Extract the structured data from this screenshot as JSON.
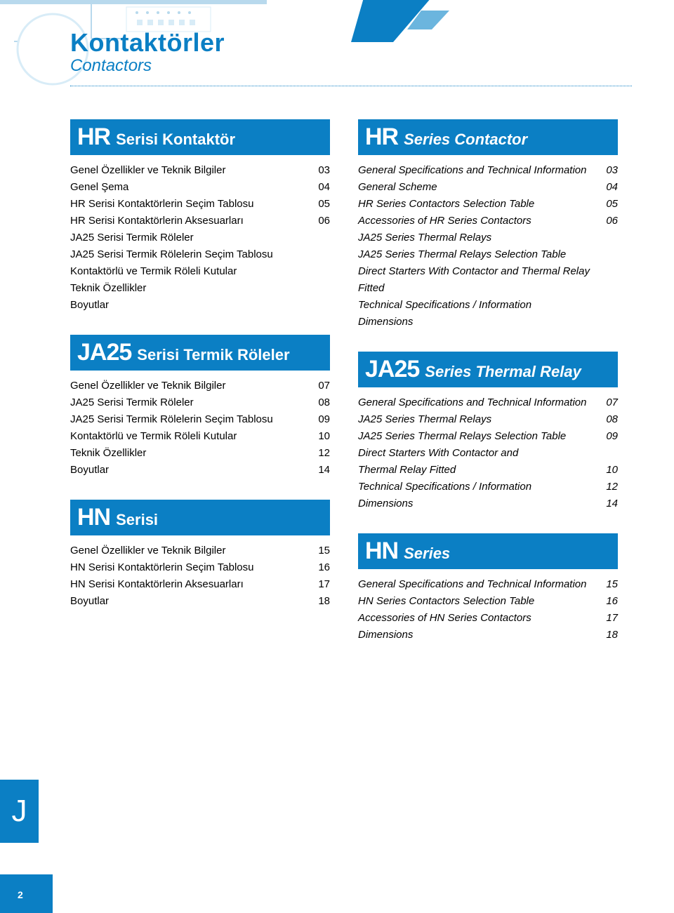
{
  "colors": {
    "blue": "#0b7fc4",
    "lightblue": "#8ec4e8",
    "darkblue": "#1a6fa8",
    "tabblue": "#0b7fc4"
  },
  "header": {
    "title": "Kontaktörler",
    "subtitle": "Contactors"
  },
  "sections": {
    "hr_left": {
      "prefix": "HR",
      "label": "Serisi Kontaktör",
      "items": [
        {
          "label": "Genel Özellikler ve Teknik Bilgiler",
          "page": "03"
        },
        {
          "label": "Genel Şema",
          "page": "04"
        },
        {
          "label": "HR Serisi Kontaktörlerin Seçim Tablosu",
          "page": "05"
        },
        {
          "label": "HR Serisi Kontaktörlerin Aksesuarları",
          "page": "06"
        },
        {
          "label": "JA25 Serisi Termik Röleler",
          "page": ""
        },
        {
          "label": "JA25 Serisi Termik Rölelerin Seçim Tablosu",
          "page": ""
        },
        {
          "label": "Kontaktörlü ve Termik Röleli Kutular",
          "page": ""
        },
        {
          "label": "Teknik Özellikler",
          "page": ""
        },
        {
          "label": "Boyutlar",
          "page": ""
        }
      ]
    },
    "hr_right": {
      "prefix": "HR",
      "label": "Series Contactor",
      "items": [
        {
          "label": "General Specifications and Technical Information",
          "page": "03"
        },
        {
          "label": "General Scheme",
          "page": "04"
        },
        {
          "label": "HR Series Contactors Selection Table",
          "page": "05"
        },
        {
          "label": "Accessories of HR Series Contactors",
          "page": "06"
        },
        {
          "label": "JA25 Series Thermal Relays",
          "page": ""
        },
        {
          "label": "JA25 Series Thermal Relays Selection Table",
          "page": ""
        },
        {
          "label": "Direct Starters With Contactor and Thermal Relay Fitted",
          "page": ""
        },
        {
          "label": "Technical Specifications / Information",
          "page": ""
        },
        {
          "label": "Dimensions",
          "page": ""
        }
      ]
    },
    "ja25_left": {
      "prefix": "JA25",
      "label": "Serisi Termik Röleler",
      "items": [
        {
          "label": "Genel Özellikler ve Teknik Bilgiler",
          "page": "07"
        },
        {
          "label": "JA25 Serisi Termik Röleler",
          "page": "08"
        },
        {
          "label": "JA25 Serisi Termik Rölelerin Seçim Tablosu",
          "page": "09"
        },
        {
          "label": "Kontaktörlü ve Termik Röleli Kutular",
          "page": "10"
        },
        {
          "label": "Teknik Özellikler",
          "page": "12"
        },
        {
          "label": "Boyutlar",
          "page": "14"
        }
      ]
    },
    "ja25_right": {
      "prefix": "JA25",
      "label": "Series Thermal Relay",
      "items": [
        {
          "label": "General Specifications and Technical Information",
          "page": "07"
        },
        {
          "label": "JA25 Series Thermal Relays",
          "page": "08"
        },
        {
          "label": "JA25 Series Thermal Relays Selection Table",
          "page": "09"
        },
        {
          "label": "Direct Starters With Contactor and",
          "page": ""
        },
        {
          "label": "Thermal Relay Fitted",
          "page": "10"
        },
        {
          "label": "Technical Specifications / Information",
          "page": "12"
        },
        {
          "label": "Dimensions",
          "page": "14"
        }
      ]
    },
    "hn_left": {
      "prefix": "HN",
      "label": "Serisi",
      "items": [
        {
          "label": "Genel Özellikler ve Teknik Bilgiler",
          "page": "15"
        },
        {
          "label": "HN Serisi Kontaktörlerin Seçim Tablosu",
          "page": "16"
        },
        {
          "label": "HN Serisi Kontaktörlerin Aksesuarları",
          "page": "17"
        },
        {
          "label": "Boyutlar",
          "page": "18"
        }
      ]
    },
    "hn_right": {
      "prefix": "HN",
      "label": "Series",
      "items": [
        {
          "label": "General Specifications and Technical Information",
          "page": "15"
        },
        {
          "label": "HN Series Contactors Selection Table",
          "page": "16"
        },
        {
          "label": "Accessories of HN Series Contactors",
          "page": "17"
        },
        {
          "label": "Dimensions",
          "page": "18"
        }
      ]
    }
  },
  "side_tab": "J",
  "page_number": "2"
}
